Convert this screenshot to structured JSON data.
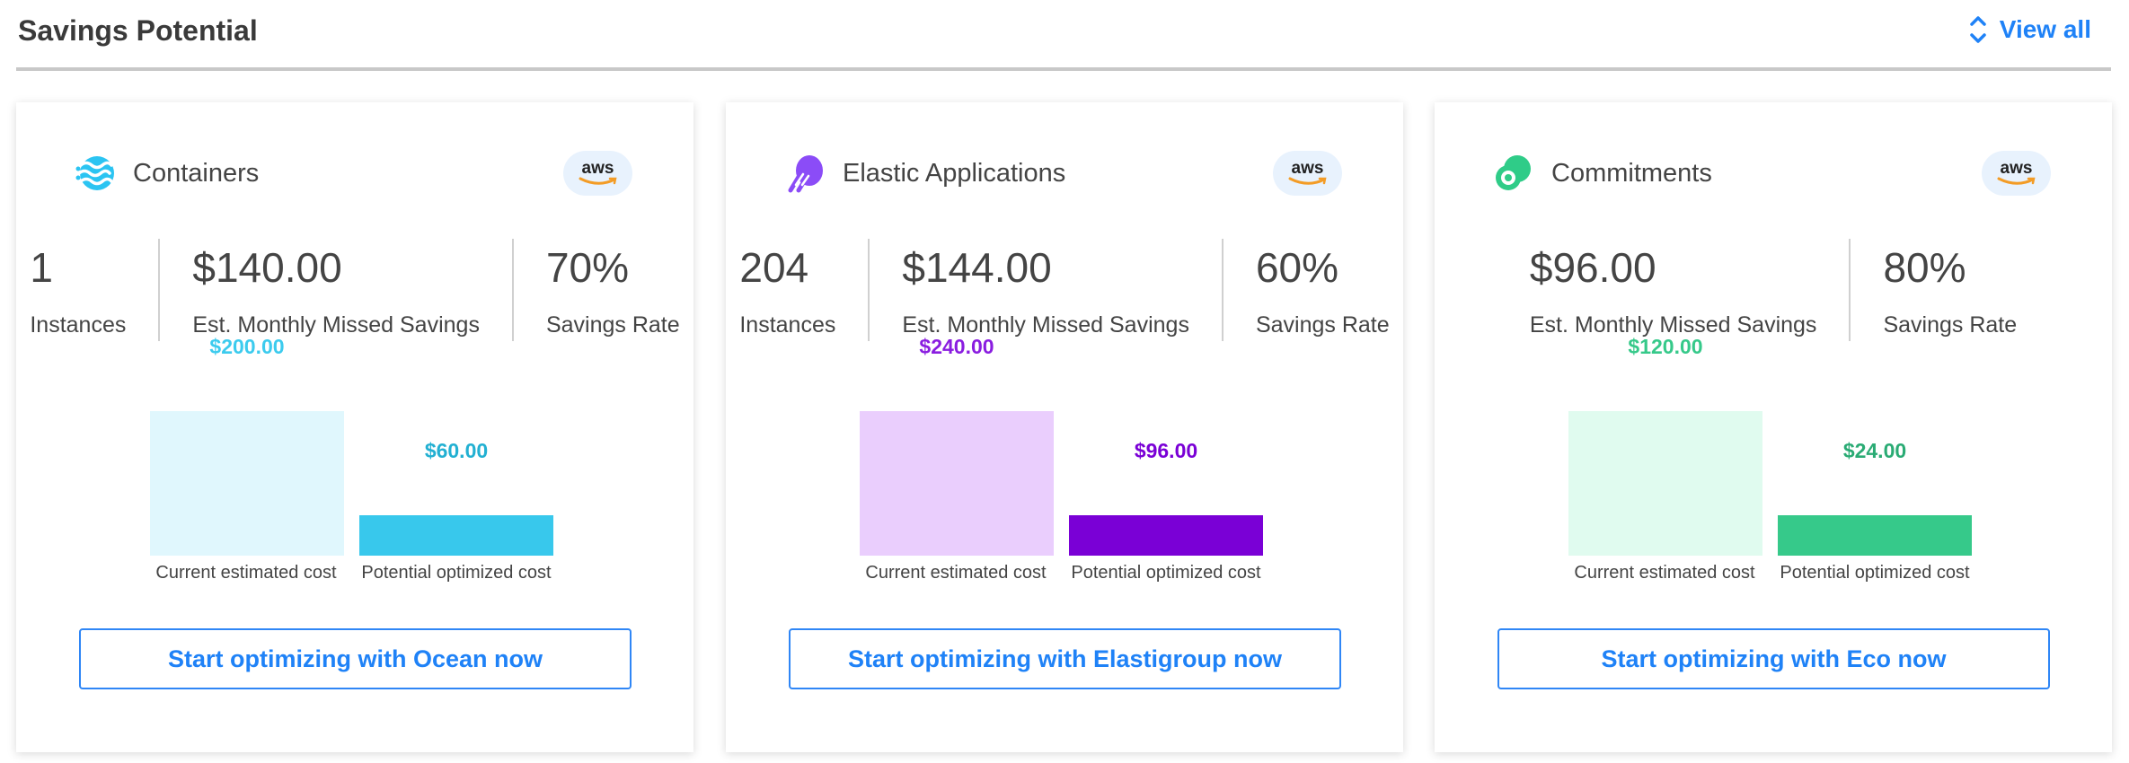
{
  "header": {
    "title": "Savings Potential",
    "view_all": "View all",
    "accent": "#1f82f7"
  },
  "cards": [
    {
      "name": "Containers",
      "icon": "ocean-waves-icon",
      "provider": "aws",
      "stats": [
        {
          "value": "1",
          "label": "Instances"
        },
        {
          "value": "$140.00",
          "label": "Est. Monthly Missed Savings"
        },
        {
          "value": "70%",
          "label": "Savings Rate"
        }
      ],
      "bars": {
        "current_value": "$200.00",
        "current_label": "Current estimated cost",
        "potential_value": "$60.00",
        "potential_label": "Potential optimized cost"
      },
      "colors": {
        "light": "#e0f7fd",
        "dark": "#38c8ec",
        "text_light": "#3ccbee",
        "text_dark": "#22b0d2"
      },
      "button": "Start optimizing with Ocean now"
    },
    {
      "name": "Elastic Applications",
      "icon": "elastigroup-icon",
      "provider": "aws",
      "stats": [
        {
          "value": "204",
          "label": "Instances"
        },
        {
          "value": "$144.00",
          "label": "Est. Monthly Missed Savings"
        },
        {
          "value": "60%",
          "label": "Savings Rate"
        }
      ],
      "bars": {
        "current_value": "$240.00",
        "current_label": "Current estimated cost",
        "potential_value": "$96.00",
        "potential_label": "Potential optimized cost"
      },
      "colors": {
        "light": "#eacefd",
        "dark": "#7a00d6",
        "text_light": "#8a1de0",
        "text_dark": "#7a00d6"
      },
      "button": "Start optimizing with Elastigroup now"
    },
    {
      "name": "Commitments",
      "icon": "eco-icon",
      "provider": "aws",
      "stats": [
        {
          "value": "$96.00",
          "label": "Est. Monthly Missed Savings"
        },
        {
          "value": "80%",
          "label": "Savings Rate"
        }
      ],
      "bars": {
        "current_value": "$120.00",
        "current_label": "Current estimated cost",
        "potential_value": "$24.00",
        "potential_label": "Potential optimized cost"
      },
      "colors": {
        "light": "#e0fbef",
        "dark": "#36c98a",
        "text_light": "#36c98a",
        "text_dark": "#2aab74"
      },
      "button": "Start optimizing with Eco now"
    }
  ]
}
